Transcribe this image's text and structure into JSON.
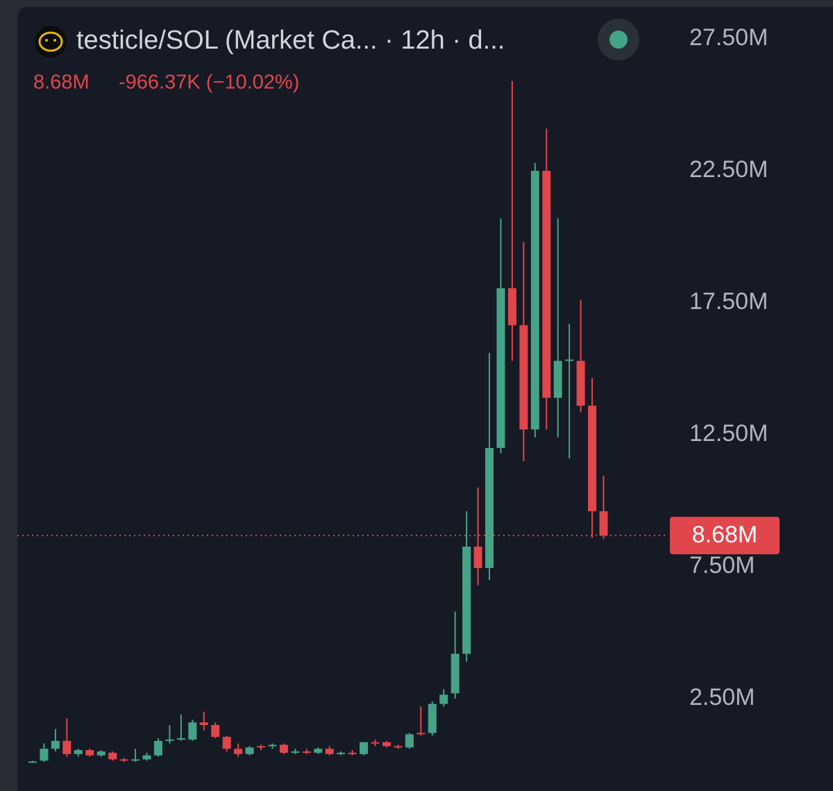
{
  "chart_data": {
    "type": "candlestick",
    "title": "testicle/SOL (Market Ca... · 12h · d...",
    "change_label": "-966.37K (−10.02%)",
    "last_price": {
      "value": 8.68,
      "label": "8.68M"
    },
    "open": [
      0.1,
      0.15,
      0.6,
      0.9,
      0.4,
      0.55,
      0.35,
      0.45,
      0.2,
      0.15,
      0.2,
      0.35,
      0.9,
      0.95,
      0.95,
      1.6,
      1.5,
      1.05,
      0.6,
      0.4,
      0.7,
      0.7,
      0.75,
      0.45,
      0.5,
      0.45,
      0.6,
      0.4,
      0.45,
      0.4,
      0.85,
      0.85,
      0.7,
      0.65,
      1.2,
      1.2,
      2.3,
      2.7,
      4.2,
      8.26,
      7.45,
      12.0,
      18.05,
      16.65,
      12.7,
      22.5,
      13.9,
      15.3,
      15.3,
      13.6,
      9.6
    ],
    "high": [
      0.15,
      0.8,
      1.35,
      1.75,
      0.6,
      0.6,
      0.55,
      0.5,
      0.25,
      0.6,
      0.45,
      1.0,
      1.5,
      1.9,
      1.7,
      2.0,
      1.6,
      1.1,
      0.8,
      0.7,
      0.75,
      0.8,
      0.8,
      0.6,
      0.6,
      0.65,
      0.7,
      0.5,
      0.55,
      0.85,
      0.95,
      0.9,
      0.75,
      1.2,
      2.2,
      2.4,
      2.85,
      5.8,
      9.6,
      10.5,
      15.6,
      20.7,
      25.9,
      19.8,
      22.8,
      24.1,
      20.7,
      16.7,
      17.6,
      14.65,
      10.95
    ],
    "low": [
      0.08,
      0.1,
      0.5,
      0.3,
      0.3,
      0.3,
      0.3,
      0.15,
      0.1,
      0.1,
      0.15,
      0.3,
      0.8,
      0.9,
      0.9,
      1.3,
      1.0,
      0.5,
      0.3,
      0.35,
      0.55,
      0.6,
      0.4,
      0.4,
      0.4,
      0.4,
      0.35,
      0.35,
      0.35,
      0.35,
      0.7,
      0.65,
      0.6,
      0.6,
      1.1,
      1.1,
      2.2,
      2.5,
      3.9,
      6.8,
      7.0,
      11.8,
      15.3,
      11.5,
      12.4,
      12.7,
      12.4,
      11.6,
      13.35,
      8.6,
      8.55
    ],
    "close": [
      0.12,
      0.6,
      0.9,
      0.4,
      0.55,
      0.35,
      0.5,
      0.2,
      0.15,
      0.2,
      0.35,
      0.9,
      0.95,
      1.0,
      1.6,
      1.5,
      1.05,
      0.6,
      0.4,
      0.65,
      0.65,
      0.75,
      0.45,
      0.5,
      0.45,
      0.6,
      0.4,
      0.45,
      0.4,
      0.85,
      0.8,
      0.7,
      0.65,
      1.15,
      1.15,
      2.3,
      2.65,
      4.2,
      8.26,
      7.45,
      12.0,
      18.05,
      16.65,
      12.7,
      22.5,
      13.9,
      15.3,
      15.35,
      13.6,
      9.6,
      8.68
    ],
    "up_color": "#45a387",
    "down_color": "#e0464b",
    "ylim": [
      -1.0,
      28.71
    ],
    "yticks": [
      {
        "value": 2.5,
        "label": "2.50M"
      },
      {
        "value": 7.5,
        "label": "7.50M"
      },
      {
        "value": 12.5,
        "label": "12.50M"
      },
      {
        "value": 17.5,
        "label": "17.50M"
      },
      {
        "value": 22.5,
        "label": "22.50M"
      },
      {
        "value": 27.5,
        "label": "27.50M"
      }
    ]
  }
}
